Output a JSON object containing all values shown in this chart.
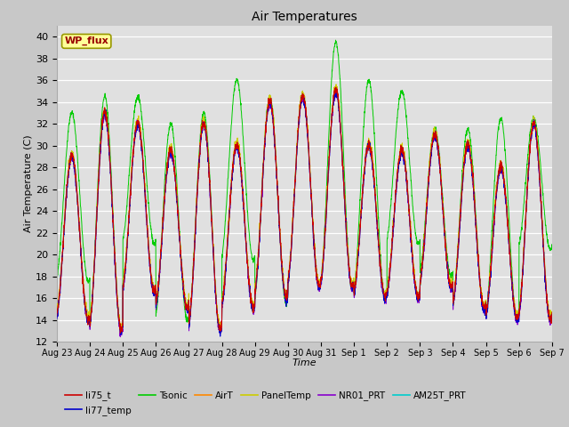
{
  "title": "Air Temperatures",
  "xlabel": "Time",
  "ylabel": "Air Temperature (C)",
  "ylim": [
    12,
    41
  ],
  "yticks": [
    12,
    14,
    16,
    18,
    20,
    22,
    24,
    26,
    28,
    30,
    32,
    34,
    36,
    38,
    40
  ],
  "fig_bg": "#c8c8c8",
  "plot_bg": "#e0e0e0",
  "series": [
    "li75_t",
    "li77_temp",
    "Tsonic",
    "AirT",
    "PanelTemp",
    "NR01_PRT",
    "AM25T_PRT"
  ],
  "colors": {
    "li75_t": "#cc0000",
    "li77_temp": "#0000cc",
    "Tsonic": "#00cc00",
    "AirT": "#ff8800",
    "PanelTemp": "#cccc00",
    "NR01_PRT": "#8800cc",
    "AM25T_PRT": "#00cccc"
  },
  "annotation_text": "WP_flux",
  "annotation_color": "#990000",
  "annotation_bg": "#ffff99",
  "annotation_border": "#999900",
  "tick_labels": [
    "Aug 23",
    "Aug 24",
    "Aug 25",
    "Aug 26",
    "Aug 27",
    "Aug 28",
    "Aug 29",
    "Aug 30",
    "Aug 31",
    "Sep 1",
    "Sep 2",
    "Sep 3",
    "Sep 4",
    "Sep 5",
    "Sep 6",
    "Sep 7"
  ],
  "n_points": 2880,
  "n_days": 15
}
